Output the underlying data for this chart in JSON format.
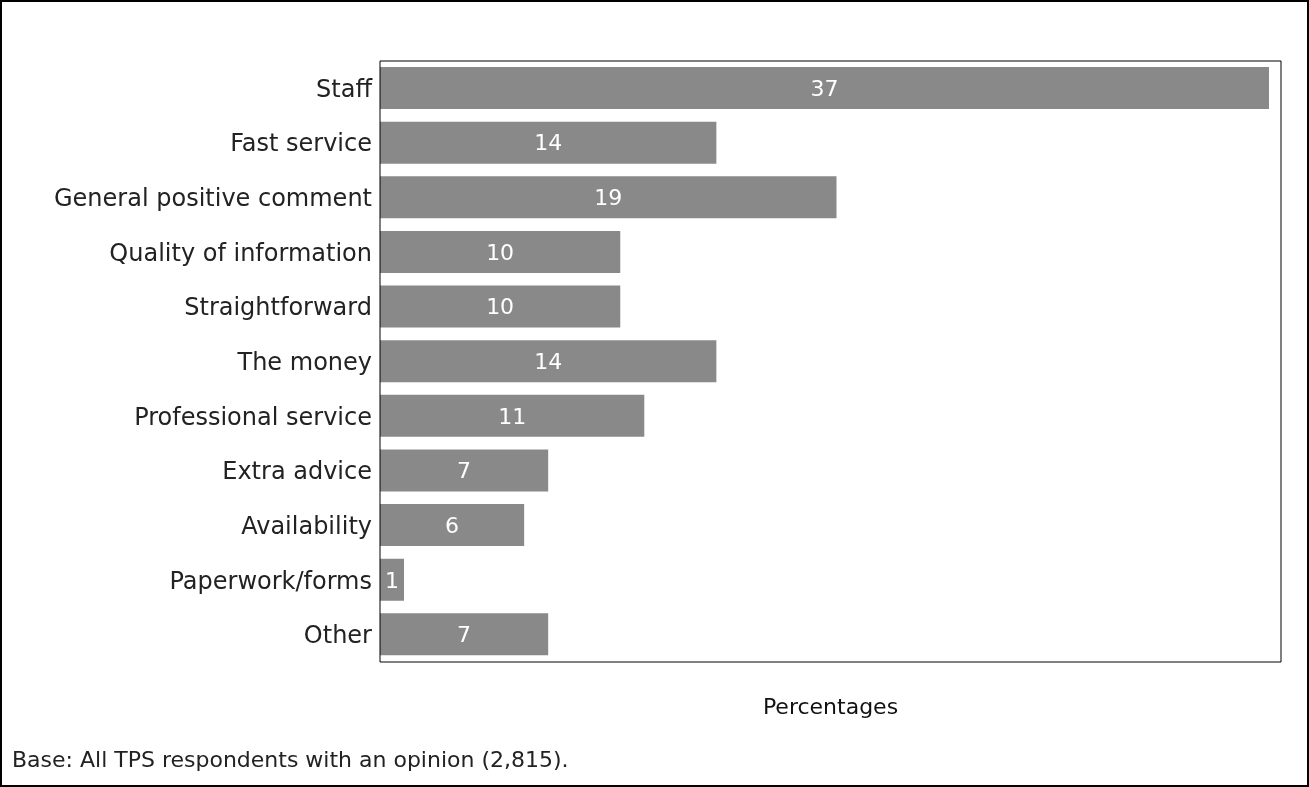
{
  "chart_data": {
    "type": "bar",
    "orientation": "horizontal",
    "categories": [
      "Staff",
      "Fast service",
      "General positive comment",
      "Quality of information",
      "Straightforward",
      "The money",
      "Professional service",
      "Extra advice",
      "Availability",
      "Paperwork/forms",
      "Other"
    ],
    "values": [
      37,
      14,
      19,
      10,
      10,
      14,
      11,
      7,
      6,
      1,
      7
    ],
    "color": "#898989",
    "xlim": [
      0,
      37.5
    ],
    "xlabel": "Percentages",
    "data_labels": true,
    "tick_labels": "y",
    "grid": false,
    "annotations": [
      "Base: All TPS respondents with an opinion (2,815)."
    ]
  }
}
